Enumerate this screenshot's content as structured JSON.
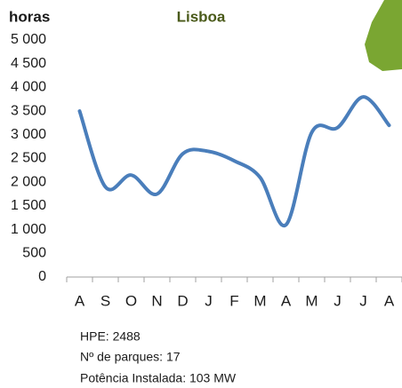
{
  "chart_data": {
    "type": "line",
    "title": "Lisboa",
    "y_label": "horas",
    "categories": [
      "A",
      "S",
      "O",
      "N",
      "D",
      "J",
      "F",
      "M",
      "A",
      "M",
      "J",
      "J",
      "A"
    ],
    "series": [
      {
        "name": "Lisboa",
        "color": "#4a7ebb",
        "values": [
          3500,
          1900,
          2150,
          1750,
          2600,
          2650,
          2450,
          2100,
          1100,
          3050,
          3150,
          3800,
          3200
        ]
      }
    ],
    "ylim": [
      0,
      5000
    ],
    "yticks": [
      0,
      500,
      {
        "value": 1000,
        "label": "1 000"
      },
      {
        "value": 1500,
        "label": "1 500"
      },
      {
        "value": 2000,
        "label": "2 000"
      },
      {
        "value": 2500,
        "label": "2 500"
      },
      {
        "value": 3000,
        "label": "3 000"
      },
      {
        "value": 3500,
        "label": "3 500"
      },
      {
        "value": 4000,
        "label": "4 000"
      },
      {
        "value": 4500,
        "label": "4 500"
      },
      {
        "value": 5000,
        "label": "5 000"
      }
    ],
    "grid": false,
    "notes": [
      "HPE: 2488",
      "Nº de parques: 17",
      "Potência Instalada:  103 MW"
    ]
  }
}
